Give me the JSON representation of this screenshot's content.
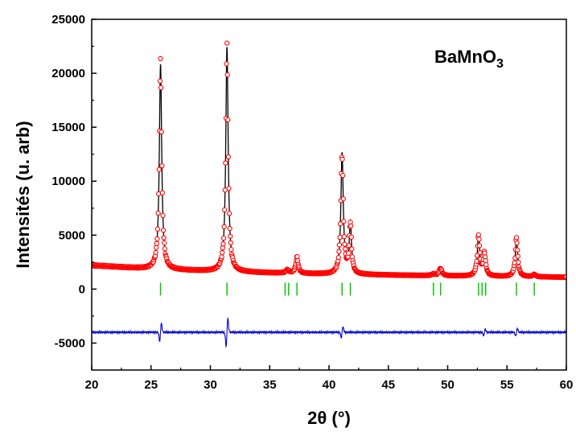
{
  "chart_data": {
    "type": "line",
    "annotation": "BaMnO",
    "annotation_subscript": "3",
    "xlabel": "2θ (°)",
    "ylabel": "Intensités (u. arb)",
    "xlim": [
      20,
      60
    ],
    "ylim": [
      -7500,
      25000
    ],
    "x_ticks": [
      "20",
      "25",
      "30",
      "35",
      "40",
      "45",
      "50",
      "55",
      "60"
    ],
    "y_ticks": [
      "25000",
      "20000",
      "15000",
      "10000",
      "5000",
      "0",
      "-5000"
    ],
    "colors": {
      "observed": "#ff0000",
      "calculated": "#000000",
      "difference": "#0000cc",
      "bragg_positions": "#00cc00"
    },
    "background": [
      [
        20,
        2200
      ],
      [
        25,
        1850
      ],
      [
        30,
        1650
      ],
      [
        35,
        1500
      ],
      [
        40,
        1380
      ],
      [
        45,
        1300
      ],
      [
        50,
        1220
      ],
      [
        55,
        1160
      ],
      [
        60,
        1100
      ]
    ],
    "peaks": [
      {
        "x": 25.8,
        "height": 19000,
        "width": 0.12
      },
      {
        "x": 31.4,
        "height": 20800,
        "width": 0.12
      },
      {
        "x": 36.5,
        "height": 300,
        "width": 0.15
      },
      {
        "x": 37.3,
        "height": 1500,
        "width": 0.12
      },
      {
        "x": 41.1,
        "height": 11200,
        "width": 0.12
      },
      {
        "x": 41.8,
        "height": 4700,
        "width": 0.11
      },
      {
        "x": 48.8,
        "height": 150,
        "width": 0.15
      },
      {
        "x": 49.4,
        "height": 700,
        "width": 0.14
      },
      {
        "x": 52.6,
        "height": 3800,
        "width": 0.12
      },
      {
        "x": 53.1,
        "height": 2100,
        "width": 0.12
      },
      {
        "x": 55.8,
        "height": 3600,
        "width": 0.12
      },
      {
        "x": 57.3,
        "height": 200,
        "width": 0.15
      }
    ],
    "bragg_positions": [
      25.8,
      31.4,
      36.3,
      36.6,
      37.3,
      41.1,
      41.8,
      48.8,
      49.4,
      52.6,
      52.9,
      53.2,
      55.8,
      57.3
    ],
    "bragg_tick_y": [
      -600,
      600
    ],
    "difference_offset": -4000,
    "difference_features": [
      {
        "x": 25.8,
        "amplitude": 1500
      },
      {
        "x": 31.4,
        "amplitude": 2300
      },
      {
        "x": 41.1,
        "amplitude": 900
      },
      {
        "x": 53.1,
        "amplitude": 500
      },
      {
        "x": 55.8,
        "amplitude": 600
      }
    ]
  }
}
